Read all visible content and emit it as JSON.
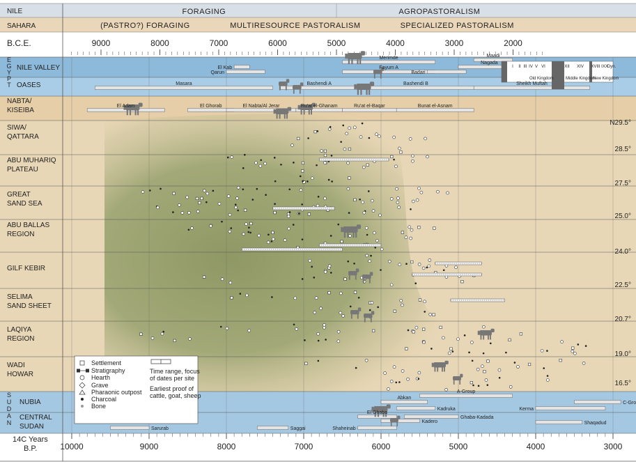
{
  "chart_data": {
    "type": "timeline",
    "top_band_titles": [
      {
        "label": "NILE"
      },
      {
        "label": "SAHARA"
      }
    ],
    "top_band_phases": [
      {
        "row": 0,
        "label": "FORAGING",
        "from_bce": 9500,
        "to_bce": 5000
      },
      {
        "row": 0,
        "label": "AGROPASTORALISM",
        "from_bce": 5000,
        "to_bce": 1500
      },
      {
        "row": 1,
        "label": "(PASTRO?) FORAGING",
        "from_bce": 9500,
        "to_bce": 7000
      },
      {
        "row": 1,
        "label": "MULTIRESOURCE PASTORALISM",
        "from_bce": 7000,
        "to_bce": 4400
      },
      {
        "row": 1,
        "label": "SPECIALIZED PASTORALISM",
        "from_bce": 4400,
        "to_bce": 1500
      }
    ],
    "bce_axis": {
      "label": "B.C.E.",
      "ticks": [
        9000,
        8000,
        7000,
        6000,
        5000,
        4000,
        3000,
        2000
      ]
    },
    "bp_axis": {
      "label_line1": "14C Years",
      "label_line2": "B.P.",
      "ticks": [
        10000,
        9000,
        8000,
        7000,
        6000,
        5000,
        4000,
        3000
      ]
    },
    "region_groups": [
      {
        "label": "EGYPT"
      },
      {
        "label": "SUDAN"
      }
    ],
    "regions": [
      {
        "label_line1": "NILE VALLEY",
        "label_line2": ""
      },
      {
        "label_line1": "OASES",
        "label_line2": ""
      },
      {
        "label_line1": "NABTA/",
        "label_line2": "KISEIBA"
      },
      {
        "label_line1": "SIWA/",
        "label_line2": "QATTARA"
      },
      {
        "label_line1": "ABU MUHARIQ",
        "label_line2": "PLATEAU"
      },
      {
        "label_line1": "GREAT",
        "label_line2": "SAND SEA"
      },
      {
        "label_line1": "ABU BALLAS",
        "label_line2": "REGION"
      },
      {
        "label_line1": "GILF KEBIR",
        "label_line2": ""
      },
      {
        "label_line1": "SELIMA",
        "label_line2": "SAND SHEET"
      },
      {
        "label_line1": "LAQIYA",
        "label_line2": "REGION"
      },
      {
        "label_line1": "WADI",
        "label_line2": "HOWAR"
      },
      {
        "label_line1": "NUBIA",
        "label_line2": ""
      },
      {
        "label_line1": "CENTRAL",
        "label_line2": "SUDAN"
      }
    ],
    "latitude_labels": [
      {
        "label": "N29.5°"
      },
      {
        "label": "28.5°"
      },
      {
        "label": "27.5°"
      },
      {
        "label": "25.0°"
      },
      {
        "label": "24.0°"
      },
      {
        "label": "22.5°"
      },
      {
        "label": "20.7°"
      },
      {
        "label": "19.0°"
      },
      {
        "label": "16.5°"
      }
    ],
    "cultural_units": [
      {
        "label": "Merimde",
        "bp_from": 6500,
        "bp_to": 5300
      },
      {
        "label": "Maadi",
        "bp_from": 4800,
        "bp_to": 4300
      },
      {
        "label": "El Kab",
        "bp_from": 7900,
        "bp_to": 7700
      },
      {
        "label": "Nagada",
        "bp_from": 5000,
        "bp_to": 4200
      },
      {
        "label": "Qarun",
        "bp_from": 8000,
        "bp_to": 7500
      },
      {
        "label": "Fayum A",
        "bp_from": 6500,
        "bp_to": 5300
      },
      {
        "label": "Badari",
        "bp_from": 5400,
        "bp_to": 4900
      },
      {
        "label": "Masara",
        "bp_from": 9700,
        "bp_to": 7400
      },
      {
        "label": "Bashendi A",
        "bp_from": 7300,
        "bp_to": 6300
      },
      {
        "label": "Bashendi B",
        "bp_from": 6300,
        "bp_to": 4800
      },
      {
        "label": "Sheikh Muftah",
        "bp_from": 4800,
        "bp_to": 3300
      },
      {
        "label": "El Adam",
        "bp_from": 9800,
        "bp_to": 8800
      },
      {
        "label": "El Ghorab",
        "bp_from": 8500,
        "bp_to": 7900
      },
      {
        "label": "El Nabta/Al Jerar",
        "bp_from": 8000,
        "bp_to": 7100
      },
      {
        "label": "Ru'at el-Ghanam",
        "bp_from": 7100,
        "bp_to": 6500
      },
      {
        "label": "Ru'at el-Baqar",
        "bp_from": 6500,
        "bp_to": 5800
      },
      {
        "label": "Bunat el-Asnam",
        "bp_from": 5800,
        "bp_to": 4800
      },
      {
        "label": "A-Group",
        "bp_from": 5500,
        "bp_to": 4300
      },
      {
        "label": "C-Group",
        "bp_from": 3500,
        "bp_to": 2900
      },
      {
        "label": "Abkan",
        "bp_from": 6000,
        "bp_to": 5400
      },
      {
        "label": "Kadruka",
        "bp_from": 5800,
        "bp_to": 5300
      },
      {
        "label": "Kerma",
        "bp_from": 4000,
        "bp_to": 3100
      },
      {
        "label": "El Ghaba",
        "bp_from": 6300,
        "bp_to": 5800
      },
      {
        "label": "Ghaba-Kadada",
        "bp_from": 5700,
        "bp_to": 5000
      },
      {
        "label": "Kadero",
        "bp_from": 6000,
        "bp_to": 5500
      },
      {
        "label": "Shaqadud",
        "bp_from": 4000,
        "bp_to": 3400
      },
      {
        "label": "Sarurab",
        "bp_from": 9500,
        "bp_to": 9000
      },
      {
        "label": "Saggai",
        "bp_from": 7600,
        "bp_to": 7200
      },
      {
        "label": "Shaheinab",
        "bp_from": 6300,
        "bp_to": 5800
      }
    ],
    "dynastic_periods": [
      {
        "label": "I"
      },
      {
        "label": "II"
      },
      {
        "label": "III"
      },
      {
        "label": "IV"
      },
      {
        "label": "V"
      },
      {
        "label": "VI"
      },
      {
        "label": "XII"
      },
      {
        "label": "XIV"
      },
      {
        "label": "XVIII"
      },
      {
        "label": "IXX"
      },
      {
        "label": "Dyn."
      },
      {
        "label": "Old Kingdom"
      },
      {
        "label": "Middle Kingdom"
      },
      {
        "label": "New Kingdom"
      }
    ],
    "legend": {
      "items": [
        {
          "symbol": "square",
          "label": "Settlement"
        },
        {
          "symbol": "stratigraphy",
          "label": "Stratigraphy"
        },
        {
          "symbol": "circle",
          "label": "Hearth"
        },
        {
          "symbol": "diamond",
          "label": "Grave"
        },
        {
          "symbol": "triangle",
          "label": "Pharaonic outpost"
        },
        {
          "symbol": "dot",
          "label": "Charcoal"
        },
        {
          "symbol": "gray-dot",
          "label": "Bone"
        }
      ],
      "range_label_line1": "Time range, focus",
      "range_label_line2": "of dates per site",
      "proof_label_line1": "Earliest proof of",
      "proof_label_line2": "cattle, goat, sheep"
    },
    "colors": {
      "nile_band": "#d9dfe6",
      "sahara_band": "#ead6b8",
      "nile_valley": "#8db9da",
      "oases": "#a9cde6",
      "nabta": "#e6cfa8",
      "desert": "#e8d7b6",
      "green": "#8f9966",
      "sudan": "#a5c8e2",
      "bar": "#e4e4e4",
      "animal": "#777777"
    }
  }
}
